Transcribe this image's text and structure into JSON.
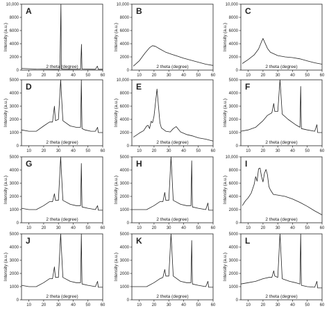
{
  "figure": {
    "background": "#ffffff",
    "line_color": "#222222"
  },
  "chart_data": [
    {
      "letter": "A",
      "type": "line",
      "xlabel": "2 theta (degree)",
      "ylabel": "Intensity (a.u.)",
      "xlim": [
        5,
        60
      ],
      "ylim": [
        0,
        10000
      ],
      "xticks": [
        10,
        20,
        30,
        40,
        50,
        60
      ],
      "yticks": [
        0,
        2000,
        4000,
        6000,
        8000,
        10000
      ],
      "x": [
        5,
        15,
        27,
        30,
        31,
        31.7,
        32,
        33,
        40,
        45,
        45.6,
        46,
        50,
        55,
        56.4,
        57,
        60
      ],
      "y": [
        250,
        160,
        130,
        130,
        160,
        10000,
        160,
        140,
        140,
        150,
        3900,
        150,
        140,
        130,
        600,
        130,
        130
      ]
    },
    {
      "letter": "B",
      "type": "line",
      "xlabel": "2 theta (degree)",
      "ylabel": "Intensity (a.u.)",
      "xlim": [
        5,
        60
      ],
      "ylim": [
        0,
        10000
      ],
      "xticks": [
        10,
        20,
        30,
        40,
        50,
        60
      ],
      "yticks": [
        0,
        2000,
        4000,
        6000,
        8000,
        10000
      ],
      "x": [
        6,
        10,
        14,
        17,
        19,
        21,
        24,
        28,
        32,
        36,
        40,
        45,
        50,
        55,
        60
      ],
      "y": [
        600,
        1400,
        2600,
        3400,
        3700,
        3600,
        3200,
        2700,
        2400,
        2100,
        1800,
        1500,
        1200,
        900,
        700
      ]
    },
    {
      "letter": "C",
      "type": "line",
      "xlabel": "2 theta (degree)",
      "ylabel": "Intensity (a.u.)",
      "xlim": [
        5,
        60
      ],
      "ylim": [
        0,
        10000
      ],
      "xticks": [
        10,
        20,
        30,
        40,
        50,
        60
      ],
      "yticks": [
        0,
        2000,
        4000,
        6000,
        8000,
        10000
      ],
      "x": [
        6,
        10,
        14,
        17,
        19,
        20,
        21,
        23,
        25,
        30,
        35,
        40,
        45,
        50,
        55,
        60
      ],
      "y": [
        1000,
        1600,
        2300,
        3200,
        4300,
        4800,
        4300,
        3300,
        2700,
        2200,
        2000,
        1900,
        1700,
        1400,
        1100,
        900
      ]
    },
    {
      "letter": "D",
      "type": "line",
      "xlabel": "2 theta (degree)",
      "ylabel": "Intensity (a.u.)",
      "xlim": [
        5,
        60
      ],
      "ylim": [
        0,
        5000
      ],
      "xticks": [
        10,
        20,
        30,
        40,
        50,
        60
      ],
      "yticks": [
        0,
        1000,
        2000,
        3000,
        4000,
        5000
      ],
      "x": [
        5,
        10,
        15,
        20,
        24,
        26,
        27.3,
        28,
        30,
        31.5,
        33,
        38,
        42,
        45,
        45.5,
        46,
        48,
        52,
        55,
        56.5,
        57,
        60
      ],
      "y": [
        1200,
        1100,
        1100,
        1500,
        1800,
        1800,
        3000,
        1900,
        2000,
        5000,
        1900,
        1500,
        1400,
        1400,
        5000,
        1300,
        1200,
        1100,
        1100,
        1400,
        1000,
        1000
      ]
    },
    {
      "letter": "E",
      "type": "line",
      "xlabel": "2 theta (degree)",
      "ylabel": "Intensity (a.u.)",
      "xlim": [
        5,
        60
      ],
      "ylim": [
        0,
        10000
      ],
      "xticks": [
        10,
        20,
        30,
        40,
        50,
        60
      ],
      "yticks": [
        0,
        2000,
        4000,
        6000,
        8000,
        10000
      ],
      "x": [
        6,
        10,
        13,
        15,
        16,
        17,
        18,
        19,
        20,
        21,
        22,
        23,
        24,
        25,
        28,
        31,
        33,
        35,
        38,
        42,
        46,
        50,
        55,
        60
      ],
      "y": [
        1300,
        1900,
        2300,
        3000,
        3100,
        2600,
        3700,
        3500,
        4500,
        6500,
        8600,
        6000,
        3500,
        2700,
        2200,
        2100,
        2600,
        2900,
        2100,
        1700,
        1500,
        1200,
        1000,
        700
      ]
    },
    {
      "letter": "F",
      "type": "line",
      "xlabel": "2 theta (degree)",
      "ylabel": "Intensity (a.u.)",
      "xlim": [
        5,
        60
      ],
      "ylim": [
        0,
        5000
      ],
      "xticks": [
        10,
        20,
        30,
        40,
        50,
        60
      ],
      "yticks": [
        0,
        1000,
        2000,
        3000,
        4000,
        5000
      ],
      "x": [
        5,
        10,
        15,
        20,
        23,
        26,
        27.3,
        28,
        30,
        31.5,
        33,
        37,
        42,
        45,
        45.5,
        46,
        50,
        55,
        56.5,
        57,
        60
      ],
      "y": [
        1100,
        1200,
        1400,
        1900,
        2300,
        2500,
        3200,
        2600,
        2600,
        5000,
        2400,
        2000,
        1600,
        1400,
        4500,
        1300,
        1200,
        1100,
        1600,
        1000,
        1000
      ]
    },
    {
      "letter": "G",
      "type": "line",
      "xlabel": "2 theta (degree)",
      "ylabel": "Intensity (a.u.)",
      "xlim": [
        5,
        60
      ],
      "ylim": [
        0,
        5000
      ],
      "xticks": [
        10,
        20,
        30,
        40,
        50,
        60
      ],
      "yticks": [
        0,
        1000,
        2000,
        3000,
        4000,
        5000
      ],
      "x": [
        5,
        10,
        15,
        20,
        24,
        26,
        27.3,
        28,
        30,
        31.5,
        33,
        38,
        42,
        45,
        45.5,
        46,
        50,
        55,
        56.5,
        57,
        60
      ],
      "y": [
        1100,
        1000,
        1000,
        1300,
        1600,
        1600,
        2200,
        1700,
        1700,
        5000,
        1700,
        1400,
        1300,
        1300,
        4500,
        1200,
        1100,
        1000,
        1300,
        950,
        950
      ]
    },
    {
      "letter": "H",
      "type": "line",
      "xlabel": "2 theta (degree)",
      "ylabel": "Intensity (a.u.)",
      "xlim": [
        5,
        60
      ],
      "ylim": [
        0,
        5000
      ],
      "xticks": [
        10,
        20,
        30,
        40,
        50,
        60
      ],
      "yticks": [
        0,
        1000,
        2000,
        3000,
        4000,
        5000
      ],
      "x": [
        5,
        10,
        15,
        20,
        24,
        26,
        27.3,
        28,
        30,
        31.5,
        33,
        38,
        42,
        45,
        45.5,
        46,
        50,
        55,
        56.5,
        57,
        60
      ],
      "y": [
        1000,
        1000,
        1000,
        1300,
        1600,
        1600,
        2300,
        1700,
        1700,
        5000,
        1700,
        1400,
        1300,
        1300,
        4700,
        1200,
        1100,
        1000,
        1500,
        950,
        950
      ]
    },
    {
      "letter": "I",
      "type": "line",
      "xlabel": "2 theta (degree)",
      "ylabel": "Intensity (a.u.)",
      "xlim": [
        5,
        60
      ],
      "ylim": [
        0,
        10000
      ],
      "xticks": [
        10,
        20,
        30,
        40,
        50,
        60
      ],
      "yticks": [
        0,
        2000,
        4000,
        6000,
        8000,
        10000
      ],
      "x": [
        6,
        8,
        10,
        12,
        14,
        15,
        16,
        17,
        18,
        19,
        20,
        21,
        22,
        23,
        24,
        25,
        27,
        30,
        35,
        40,
        45,
        50,
        55,
        60
      ],
      "y": [
        2600,
        3300,
        3800,
        4500,
        5800,
        7000,
        6300,
        8200,
        8300,
        7000,
        6200,
        7500,
        8100,
        7300,
        5500,
        5000,
        4300,
        4200,
        4000,
        3600,
        3100,
        2500,
        1800,
        1200
      ]
    },
    {
      "letter": "J",
      "type": "line",
      "xlabel": "2 theta (degree)",
      "ylabel": "Intensity (a.u.)",
      "xlim": [
        5,
        60
      ],
      "ylim": [
        0,
        5000
      ],
      "xticks": [
        10,
        20,
        30,
        40,
        50,
        60
      ],
      "yticks": [
        0,
        1000,
        2000,
        3000,
        4000,
        5000
      ],
      "x": [
        5,
        10,
        15,
        20,
        24,
        26,
        27.3,
        28,
        30,
        31.5,
        33,
        38,
        42,
        45,
        45.5,
        46,
        50,
        55,
        56.5,
        57,
        60
      ],
      "y": [
        1100,
        1000,
        1000,
        1300,
        1600,
        1600,
        2500,
        1700,
        1700,
        5000,
        1700,
        1400,
        1300,
        1300,
        5000,
        1200,
        1100,
        1000,
        1400,
        950,
        950
      ]
    },
    {
      "letter": "K",
      "type": "line",
      "xlabel": "2 theta (degree)",
      "ylabel": "Intensity (a.u.)",
      "xlim": [
        5,
        60
      ],
      "ylim": [
        0,
        5000
      ],
      "xticks": [
        10,
        20,
        30,
        40,
        50,
        60
      ],
      "yticks": [
        0,
        1000,
        2000,
        3000,
        4000,
        5000
      ],
      "x": [
        5,
        10,
        15,
        20,
        24,
        26,
        27.3,
        28,
        30,
        31.5,
        33,
        38,
        42,
        45,
        45.5,
        46,
        50,
        55,
        56.5,
        57,
        60
      ],
      "y": [
        1000,
        1000,
        1000,
        1300,
        1600,
        1700,
        2300,
        1800,
        1800,
        5000,
        1800,
        1400,
        1300,
        1300,
        4500,
        1200,
        1100,
        1000,
        1400,
        950,
        950
      ]
    },
    {
      "letter": "L",
      "type": "line",
      "xlabel": "2 theta (degree)",
      "ylabel": "Intensity (a.u.)",
      "xlim": [
        5,
        60
      ],
      "ylim": [
        0,
        5000
      ],
      "xticks": [
        10,
        20,
        30,
        40,
        50,
        60
      ],
      "yticks": [
        0,
        1000,
        2000,
        3000,
        4000,
        5000
      ],
      "x": [
        5,
        10,
        15,
        20,
        24,
        26,
        27.3,
        28,
        30,
        31.5,
        33,
        38,
        42,
        45,
        45.5,
        46,
        50,
        55,
        56.5,
        57,
        60
      ],
      "y": [
        1200,
        1300,
        1400,
        1600,
        1700,
        1700,
        2200,
        1800,
        1700,
        5000,
        1600,
        1400,
        1300,
        1200,
        5000,
        1100,
        1000,
        950,
        1400,
        900,
        900
      ]
    }
  ]
}
